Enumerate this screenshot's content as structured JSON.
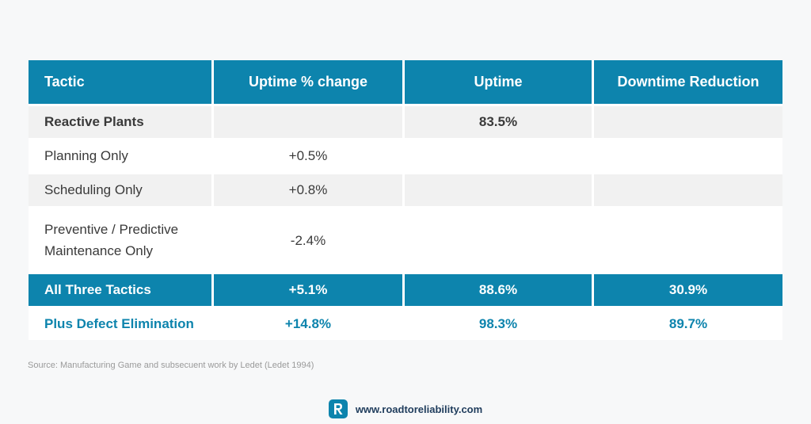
{
  "table": {
    "headers": [
      "Tactic",
      "Uptime % change",
      "Uptime",
      "Downtime Reduction"
    ],
    "rows": [
      [
        "Reactive Plants",
        "",
        "83.5%",
        ""
      ],
      [
        "Planning Only",
        "+0.5%",
        "",
        ""
      ],
      [
        "Scheduling Only",
        "+0.8%",
        "",
        ""
      ],
      [
        "Preventive / Predictive Maintenance Only",
        "-2.4%",
        "",
        ""
      ],
      [
        "All Three Tactics",
        "+5.1%",
        "88.6%",
        "30.9%"
      ],
      [
        "Plus Defect Elimination",
        "+14.8%",
        "98.3%",
        "89.7%"
      ]
    ],
    "tall_row_lines": [
      "Preventive / Predictive",
      "Maintenance Only"
    ]
  },
  "source": "Source: Manufacturing Game and subsecuent work by Ledet (Ledet 1994)",
  "footer": {
    "logo_letter": "R",
    "site": "www.roadtoreliability.com"
  },
  "colors": {
    "accent": "#0d84ad",
    "row_grey": "#f1f1f1",
    "background": "#f7f8f9",
    "footer_text": "#1f3c5c"
  },
  "icons": [
    "roadtoreliability-logo-icon"
  ]
}
